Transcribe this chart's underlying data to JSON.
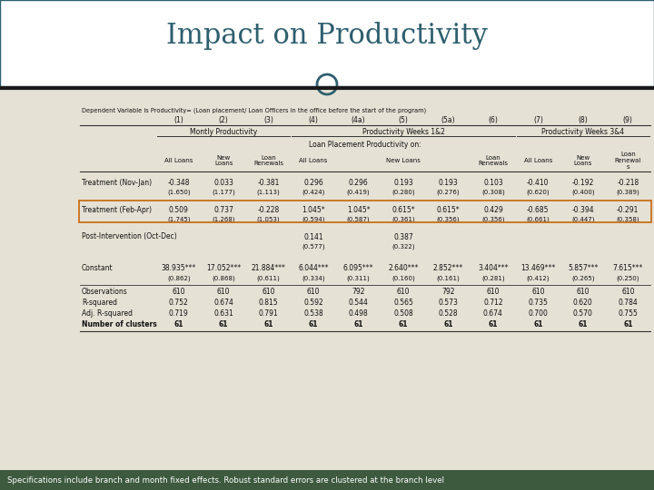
{
  "title": "Impact on Productivity",
  "subtitle": "Dependent Variable is Productivity= (Loan placement/ Loan Officers in the office before the start of the program)",
  "footer": "Specifications include branch and month fixed effects. Robust standard errors are clustered at the branch level",
  "col_numbers": [
    "(1)",
    "(2)",
    "(3)",
    "(4)",
    "(4a)",
    "(5)",
    "(5a)",
    "(6)",
    "(7)",
    "(8)",
    "(9)"
  ],
  "group_headers": [
    {
      "label": "Montly Productivity",
      "cols": [
        0,
        1,
        2
      ]
    },
    {
      "label": "Productivity Weeks 1&2",
      "cols": [
        3,
        4,
        5,
        6,
        7
      ]
    },
    {
      "label": "Productivity Weeks 3&4",
      "cols": [
        8,
        9,
        10
      ]
    }
  ],
  "subgroup_header": "Loan Placement Productivity on:",
  "col_headers": [
    "All Loans",
    "New\nLoans",
    "Loan\nRenewals",
    "All Loans",
    "",
    "New Loans",
    "",
    "Loan\nRenewals",
    "All Loans",
    "New\nLoans",
    "Loan\nRenewal\ns"
  ],
  "rows": [
    {
      "label": "Treatment (Nov-Jan)",
      "values": [
        "-0.348",
        "0.033",
        "-0.381",
        "0.296",
        "0.296",
        "0.193",
        "0.193",
        "0.103",
        "-0.410",
        "-0.192",
        "-0.218"
      ],
      "se": [
        "(1.650)",
        "(1.177)",
        "(1.113)",
        "(0.424)",
        "(0.419)",
        "(0.280)",
        "(0.276)",
        "(0.308)",
        "(0.620)",
        "(0.400)",
        "(0.389)"
      ],
      "highlight": false
    },
    {
      "label": "Treatment (Feb-Apr)",
      "values": [
        "0.509",
        "0.737",
        "-0.228",
        "1.045*",
        "1.045*",
        "0.615*",
        "0.615*",
        "0.429",
        "-0.685",
        "-0.394",
        "-0.291"
      ],
      "se": [
        "(1.745)",
        "(1.268)",
        "(1.053)",
        "(0.594)",
        "(0.587)",
        "(0.361)",
        "(0.356)",
        "(0.356)",
        "(0.661)",
        "(0.447)",
        "(0.358)"
      ],
      "highlight": true
    },
    {
      "label": "Post-Intervention (Oct-Dec)",
      "values": [
        "",
        "",
        "",
        "0.141",
        "",
        "0.387",
        "",
        "",
        "",
        "",
        ""
      ],
      "se": [
        "",
        "",
        "",
        "(0.577)",
        "",
        "(0.322)",
        "",
        "",
        "",
        "",
        ""
      ],
      "highlight": false
    },
    {
      "label": "Constant",
      "values": [
        "38.935***",
        "17.052***",
        "21.884***",
        "6.044***",
        "6.095***",
        "2.640***",
        "2.852***",
        "3.404***",
        "13.469***",
        "5.857***",
        "7.615***"
      ],
      "se": [
        "(0.862)",
        "(0.868)",
        "(0.611)",
        "(0.334)",
        "(0.311)",
        "(0.160)",
        "(0.161)",
        "(0.281)",
        "(0.412)",
        "(0.265)",
        "(0.250)"
      ],
      "highlight": false
    }
  ],
  "stats": [
    {
      "label": "Observations",
      "values": [
        "610",
        "610",
        "610",
        "610",
        "792",
        "610",
        "792",
        "610",
        "610",
        "610",
        "610"
      ],
      "bold": false
    },
    {
      "label": "R-squared",
      "values": [
        "0.752",
        "0.674",
        "0.815",
        "0.592",
        "0.544",
        "0.565",
        "0.573",
        "0.712",
        "0.735",
        "0.620",
        "0.784"
      ],
      "bold": false
    },
    {
      "label": "Adj. R-squared",
      "values": [
        "0.719",
        "0.631",
        "0.791",
        "0.538",
        "0.498",
        "0.508",
        "0.528",
        "0.674",
        "0.700",
        "0.570",
        "0.755"
      ],
      "bold": false
    },
    {
      "label": "Number of clusters",
      "values": [
        "61",
        "61",
        "61",
        "61",
        "61",
        "61",
        "61",
        "61",
        "61",
        "61",
        "61"
      ],
      "bold": true
    }
  ],
  "bg_color": "#d4cdbf",
  "table_bg": "#e6e1d5",
  "title_bg": "#ffffff",
  "title_color": "#2d5f6e",
  "footer_bg": "#3d5a3e",
  "footer_color": "#ffffff",
  "highlight_color": "#c8711a",
  "line_color": "#333333",
  "title_border_color": "#2d5f6e"
}
